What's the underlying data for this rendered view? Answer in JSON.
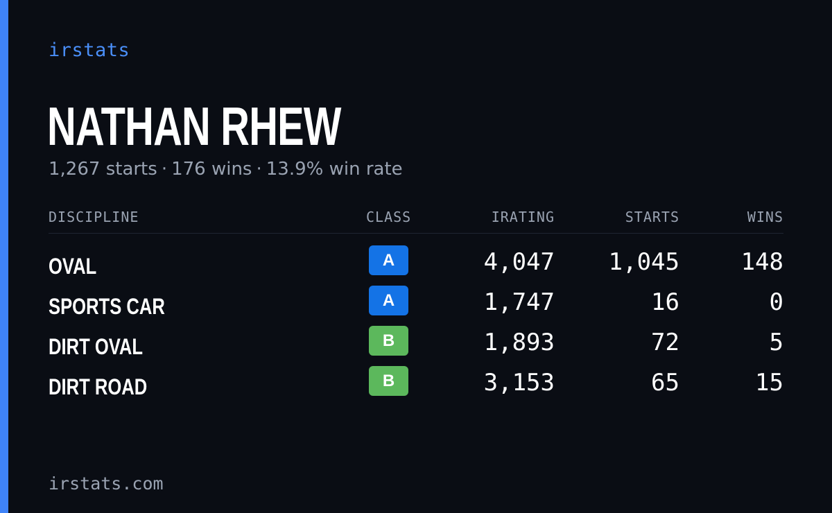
{
  "brand": "irstats",
  "player": {
    "name": "NATHAN RHEW",
    "starts_text": "1,267 starts",
    "wins_text": "176 wins",
    "win_rate_text": "13.9% win rate",
    "separator": "·"
  },
  "table": {
    "headers": {
      "discipline": "DISCIPLINE",
      "class": "CLASS",
      "irating": "IRATING",
      "starts": "STARTS",
      "wins": "WINS"
    },
    "rows": [
      {
        "discipline": "OVAL",
        "class": "A",
        "class_color": "#1473e6",
        "irating": "4,047",
        "starts": "1,045",
        "wins": "148"
      },
      {
        "discipline": "SPORTS CAR",
        "class": "A",
        "class_color": "#1473e6",
        "irating": "1,747",
        "starts": "16",
        "wins": "0"
      },
      {
        "discipline": "DIRT OVAL",
        "class": "B",
        "class_color": "#5cb85c",
        "irating": "1,893",
        "starts": "72",
        "wins": "5"
      },
      {
        "discipline": "DIRT ROAD",
        "class": "B",
        "class_color": "#5cb85c",
        "irating": "3,153",
        "starts": "65",
        "wins": "15"
      }
    ]
  },
  "footer": "irstats.com",
  "colors": {
    "background": "#0a0d14",
    "accent": "#3f83f8",
    "brand_text": "#4a8ef7",
    "muted_text": "#9aa3b2",
    "class_a": "#1473e6",
    "class_b": "#5cb85c"
  }
}
